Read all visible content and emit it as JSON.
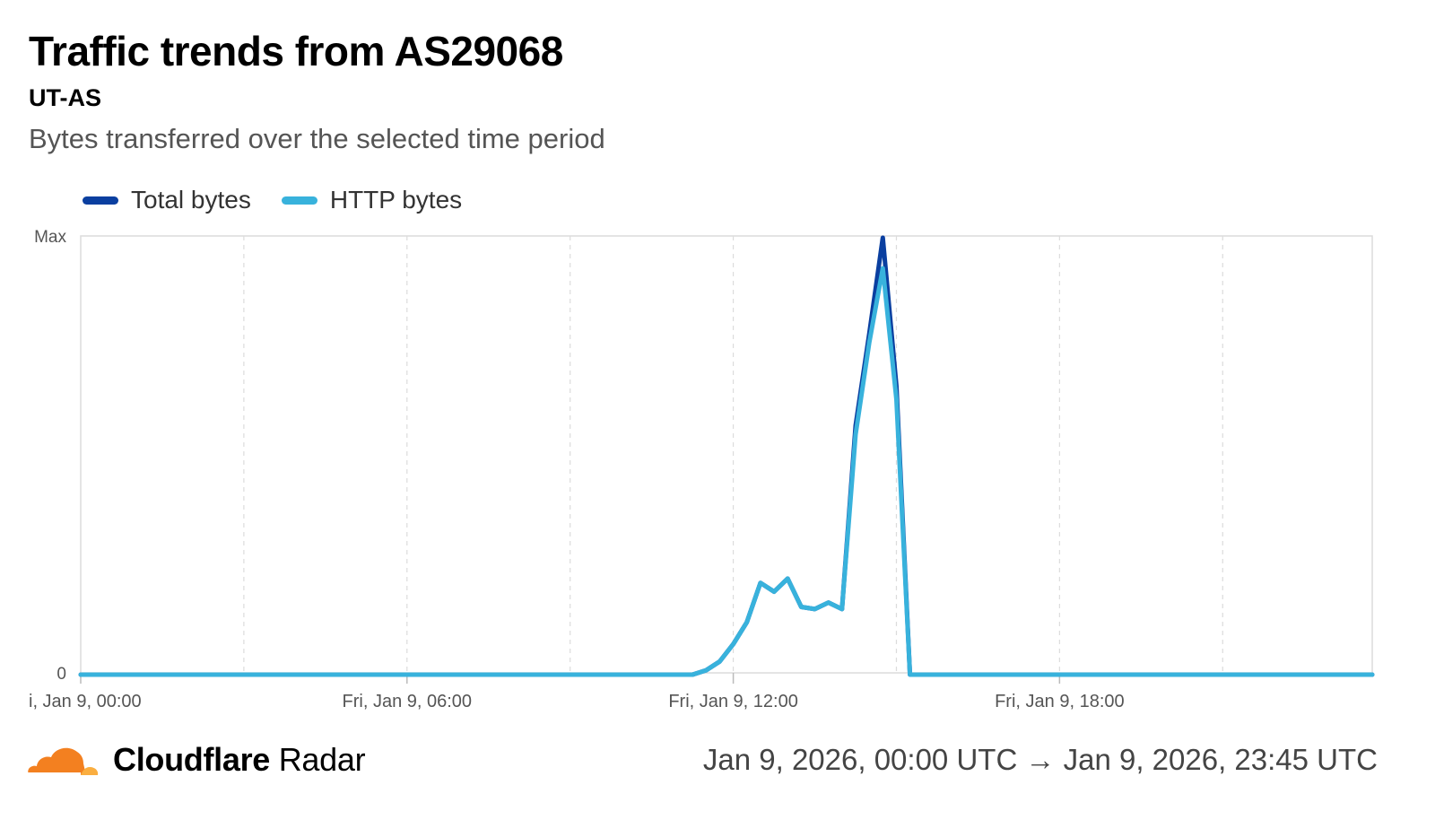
{
  "header": {
    "title": "Traffic trends from AS29068",
    "subtitle": "UT-AS",
    "description": "Bytes transferred over the selected time period"
  },
  "colors": {
    "total_bytes": "#0a3fa0",
    "http_bytes": "#38b2dc",
    "grid": "#dcdcdc",
    "axis_text": "#555555"
  },
  "footer": {
    "brand_bold": "Cloudflare",
    "brand_light": "Radar",
    "logo_icon": "cloudflare-cloud-icon",
    "time_range": "Jan 9, 2026, 00:00 UTC → Jan 9, 2026, 23:45 UTC"
  },
  "chart_data": {
    "type": "line",
    "title": "Traffic trends from AS29068",
    "subtitle": "UT-AS",
    "x_unit": "hours since Fri, Jan 9, 00:00 UTC",
    "xlim": [
      0,
      23.75
    ],
    "ylim": [
      0,
      1
    ],
    "y_ticks": [
      {
        "value": 0,
        "label": "0"
      },
      {
        "value": 1,
        "label": "Max"
      }
    ],
    "x_ticks": [
      {
        "value": 0,
        "label": "i, Jan 9, 00:00"
      },
      {
        "value": 6,
        "label": "Fri, Jan 9, 06:00"
      },
      {
        "value": 12,
        "label": "Fri, Jan 9, 12:00"
      },
      {
        "value": 18,
        "label": "Fri, Jan 9, 18:00"
      }
    ],
    "grid_x": [
      0,
      3,
      6,
      9,
      12,
      15,
      18,
      21
    ],
    "legend_position": "top-left",
    "series": [
      {
        "name": "Total bytes",
        "color": "#0a3fa0",
        "x": [
          0,
          11.25,
          11.5,
          11.75,
          12,
          12.25,
          12.5,
          12.75,
          13,
          13.25,
          13.5,
          13.75,
          14,
          14.25,
          14.5,
          14.75,
          15,
          15.25,
          15.5,
          23.75
        ],
        "y": [
          0,
          0,
          0.01,
          0.03,
          0.07,
          0.12,
          0.21,
          0.19,
          0.22,
          0.155,
          0.15,
          0.165,
          0.15,
          0.57,
          0.78,
          1.0,
          0.66,
          0,
          0,
          0
        ]
      },
      {
        "name": "HTTP bytes",
        "color": "#38b2dc",
        "x": [
          0,
          11.25,
          11.5,
          11.75,
          12,
          12.25,
          12.5,
          12.75,
          13,
          13.25,
          13.5,
          13.75,
          14,
          14.25,
          14.5,
          14.75,
          15,
          15.25,
          15.5,
          23.75
        ],
        "y": [
          0,
          0,
          0.01,
          0.03,
          0.07,
          0.12,
          0.21,
          0.19,
          0.22,
          0.155,
          0.15,
          0.165,
          0.15,
          0.55,
          0.76,
          0.93,
          0.63,
          0,
          0,
          0
        ]
      }
    ]
  }
}
